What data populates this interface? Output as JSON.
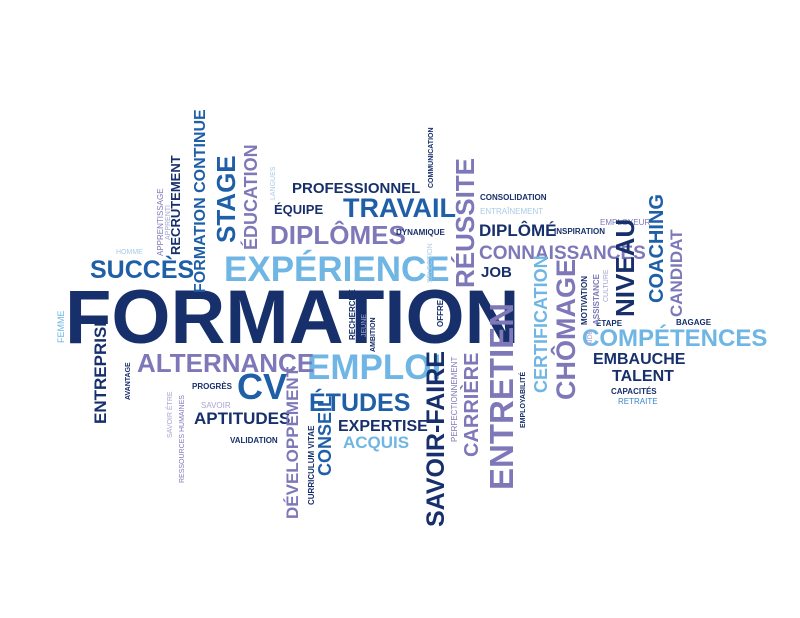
{
  "colors": {
    "dark_navy": "#17306b",
    "royal_blue": "#1f5fa8",
    "medium_blue": "#3a86c8",
    "light_blue": "#6fb6e4",
    "pale_blue": "#a9cbe6",
    "purple": "#7e78b9",
    "pale_purple": "#a8a4d0",
    "grey": "#8e96a8",
    "background": "#ffffff"
  },
  "words": {
    "formation": "FORMATION",
    "experience": "EXPÉRIENCE",
    "emploi": "EMPLOI",
    "alternance": "ALTERNANCE",
    "cv": "CV",
    "succes": "SUCCÈS",
    "diplomes": "DIPLÔMES",
    "travail": "TRAVAIL",
    "professionnel": "PROFESSIONNEL",
    "equipe": "ÉQUIPE",
    "dynamique": "DYNAMIQUE",
    "consolidation": "CONSOLIDATION",
    "entrainement": "ENTRAÎNEMENT",
    "diplome": "DIPLÔMÉ",
    "inspiration": "INSPIRATION",
    "employeur": "EMPLOYEUR",
    "connaissances": "CONNAISSANCES",
    "job": "JOB",
    "competences": "COMPÉTENCES",
    "embauche": "EMBAUCHE",
    "talent": "TALENT",
    "capacites": "CAPACITÉS",
    "retraite": "RETRAITE",
    "etape": "ÉTAPE",
    "bagage": "BAGAGE",
    "etudes": "ÉTUDES",
    "expertise": "EXPERTISE",
    "acquis": "ACQUIS",
    "aptitudes": "APTITUDES",
    "validation": "VALIDATION",
    "progres": "PROGRÈS",
    "avantage": "AVANTAGE",
    "savoir": "SAVOIR",
    "homme": "HOMME",
    "femme": "FEMME",
    "entreprise": "ENTREPRISE",
    "savoir_etre": "SAVOIR ÊTRE",
    "ressources_humaines": "RESSOURCES HUMAINES",
    "apprentissage": "APPRENTISSAGE",
    "apprenti": "APPRENTI",
    "recrutement": "RECRUTEMENT",
    "formation_continue": "FORMATION CONTINUE",
    "stage": "STAGE",
    "education": "ÉDUCATION",
    "langues": "LANGUES",
    "developpement": "DÉVELOPPEMENT",
    "curriculum_vitae": "CURRICULUM VITAE",
    "conseil": "CONSEIL",
    "communication": "COMMUNICATION",
    "recherche": "RECHERCHE",
    "jeune": "JEUNE",
    "ambition": "AMBITION",
    "selection": "SÉLECTION",
    "offre": "OFFRE",
    "reussite": "RÉUSSITE",
    "savoir_faire": "SAVOIR-FAIRE",
    "perfectionnement": "PERFECTIONNEMENT",
    "carriere": "CARRIÈRE",
    "entretien": "ENTRETIEN",
    "employabilite": "EMPLOYABILITÉ",
    "motivation": "MOTIVATION",
    "certification": "CERTIFICATION",
    "chomage": "CHÔMAGE",
    "aide": "AIDE",
    "assistance": "ASSISTANCE",
    "culture": "CULTURE",
    "niveau": "NIVEAU",
    "coaching": "COACHING",
    "candidat": "CANDIDAT"
  }
}
